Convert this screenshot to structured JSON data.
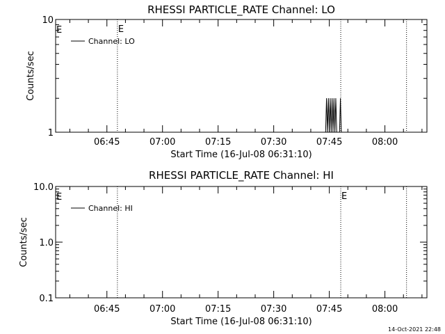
{
  "footer": {
    "date": "14-Oct-2021 22:48"
  },
  "chart_data": [
    {
      "type": "line",
      "title": "RHESSI PARTICLE_RATE Channel: LO",
      "xlabel": "Start Time (16-Jul-08 06:31:10)",
      "ylabel": "Counts/sec",
      "yscale": "log",
      "ylim": [
        1,
        10
      ],
      "y_tick_labels": [
        "1",
        "10"
      ],
      "x_tick_labels": [
        "06:45",
        "07:00",
        "07:15",
        "07:30",
        "07:45",
        "08:00"
      ],
      "xlim": [
        "06:31:10",
        "08:11:20"
      ],
      "legend": {
        "label": "Channel: LO",
        "placement": "top-left"
      },
      "markers": [
        {
          "time": "06:47:50",
          "label": "E"
        },
        {
          "time": "07:48:05",
          "label": ""
        },
        {
          "time": "08:05:50",
          "label": ""
        }
      ],
      "edge_marker_label": "E",
      "series": [
        {
          "name": "Channel: LO",
          "x": [
            "07:44:00",
            "07:44:15",
            "07:44:30",
            "07:44:45",
            "07:45:00",
            "07:45:15",
            "07:45:30",
            "07:45:45",
            "07:46:00",
            "07:46:15",
            "07:46:30",
            "07:46:45",
            "07:47:00",
            "07:47:45",
            "07:48:00",
            "07:48:15",
            "07:48:30"
          ],
          "y": [
            1,
            2,
            1,
            2,
            1,
            2,
            1,
            2,
            1,
            2,
            1,
            2,
            1,
            1,
            2,
            1,
            1
          ]
        }
      ]
    },
    {
      "type": "line",
      "title": "RHESSI PARTICLE_RATE Channel: HI",
      "xlabel": "Start Time (16-Jul-08 06:31:10)",
      "ylabel": "Counts/sec",
      "yscale": "log",
      "ylim": [
        0.1,
        10
      ],
      "y_tick_labels": [
        "0.1",
        "1.0",
        "10.0"
      ],
      "x_tick_labels": [
        "06:45",
        "07:00",
        "07:15",
        "07:30",
        "07:45",
        "08:00"
      ],
      "xlim": [
        "06:31:10",
        "08:11:20"
      ],
      "legend": {
        "label": "Channel: HI",
        "placement": "top-left"
      },
      "markers": [
        {
          "time": "06:47:50",
          "label": ""
        },
        {
          "time": "07:48:05",
          "label": "E"
        },
        {
          "time": "08:05:50",
          "label": ""
        }
      ],
      "edge_marker_label": "E",
      "series": [
        {
          "name": "Channel: HI",
          "x": [],
          "y": []
        }
      ]
    }
  ]
}
